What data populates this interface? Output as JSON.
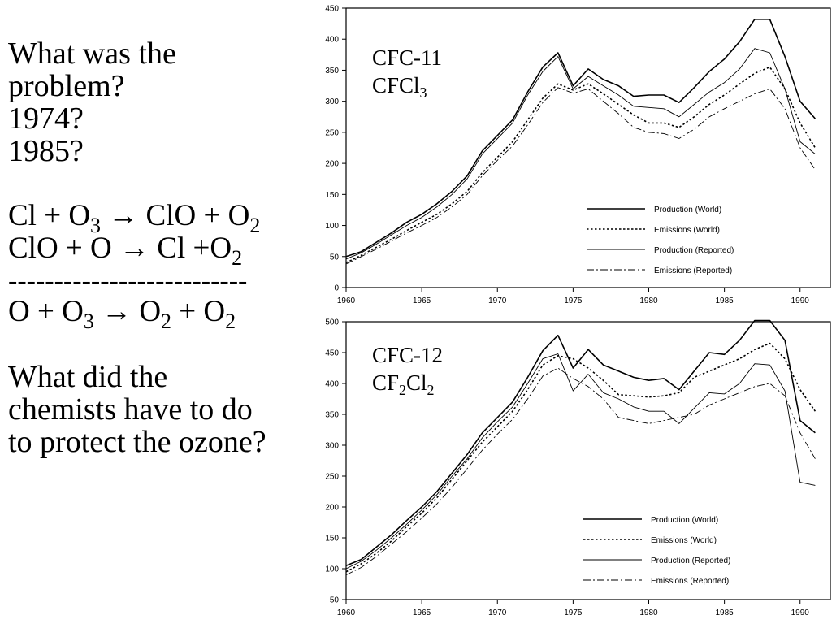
{
  "left_panel": {
    "question1": [
      "What was the",
      "problem?"
    ],
    "year1": "1974?",
    "year2": "1985?",
    "eq1": {
      "a": "Cl + O",
      "a_sub": "3",
      "b": " → ClO + O",
      "b_sub": "2"
    },
    "eq2": {
      "a": "ClO + O → Cl +O",
      "a_sub": "2"
    },
    "divider": "--------------------------",
    "eq3": {
      "a": "O + O",
      "a_sub": "3",
      "b": " → O",
      "b_sub": "2",
      "c": " + O",
      "c_sub": "2"
    },
    "question2": [
      "What did the",
      "chemists have to do",
      "to protect the ozone?"
    ]
  },
  "chart_data": [
    {
      "type": "line",
      "title": "CFC-11",
      "formula": {
        "prefix": "CFCl",
        "sub": "3",
        "suffix": ""
      },
      "xlabel": "",
      "ylabel": "",
      "xlim": [
        1960,
        1992
      ],
      "ylim": [
        0,
        450
      ],
      "x_ticks": [
        1960,
        1965,
        1970,
        1975,
        1980,
        1985,
        1990
      ],
      "y_ticks": [
        0,
        50,
        100,
        150,
        200,
        250,
        300,
        350,
        400,
        450
      ],
      "grid": false,
      "legend_position": "bottom-right",
      "x": [
        1960,
        1961,
        1962,
        1963,
        1964,
        1965,
        1966,
        1967,
        1968,
        1969,
        1970,
        1971,
        1972,
        1973,
        1974,
        1975,
        1976,
        1977,
        1978,
        1979,
        1980,
        1981,
        1982,
        1983,
        1984,
        1985,
        1986,
        1987,
        1988,
        1989,
        1990,
        1991
      ],
      "series": [
        {
          "name": "Production  (World)",
          "style": "solid",
          "width": 1.6,
          "values": [
            50,
            58,
            73,
            88,
            105,
            118,
            135,
            155,
            180,
            220,
            245,
            270,
            315,
            355,
            378,
            325,
            352,
            335,
            325,
            308,
            310,
            310,
            298,
            322,
            348,
            368,
            396,
            432,
            432,
            372,
            300,
            272
          ]
        },
        {
          "name": "Emissions  (World)",
          "style": "dotted",
          "width": 1.6,
          "values": [
            40,
            52,
            65,
            78,
            92,
            105,
            118,
            135,
            155,
            185,
            210,
            235,
            270,
            305,
            328,
            318,
            328,
            312,
            295,
            278,
            265,
            265,
            258,
            275,
            295,
            310,
            328,
            345,
            355,
            320,
            265,
            225
          ]
        },
        {
          "name": "Production  (Reported)",
          "style": "solid",
          "width": 0.9,
          "values": [
            46,
            56,
            70,
            85,
            100,
            113,
            130,
            150,
            175,
            215,
            240,
            265,
            310,
            348,
            372,
            320,
            340,
            325,
            310,
            292,
            290,
            288,
            275,
            295,
            315,
            330,
            352,
            385,
            378,
            320,
            235,
            215
          ]
        },
        {
          "name": "Emissions  (Reported)",
          "style": "dashdot",
          "width": 0.9,
          "values": [
            38,
            50,
            62,
            75,
            88,
            100,
            113,
            130,
            150,
            180,
            205,
            228,
            262,
            298,
            322,
            313,
            320,
            300,
            280,
            258,
            250,
            248,
            240,
            255,
            275,
            288,
            300,
            312,
            320,
            288,
            225,
            190
          ]
        }
      ]
    },
    {
      "type": "line",
      "title": "CFC-12",
      "formula": {
        "prefix": "CF",
        "sub": "2",
        "suffix": "Cl",
        "sub2": "2"
      },
      "xlabel": "",
      "ylabel": "",
      "xlim": [
        1960,
        1992
      ],
      "ylim": [
        50,
        500
      ],
      "x_ticks": [
        1960,
        1965,
        1970,
        1975,
        1980,
        1985,
        1990
      ],
      "y_ticks": [
        50,
        100,
        150,
        200,
        250,
        300,
        350,
        400,
        450,
        500
      ],
      "grid": false,
      "legend_position": "bottom-right",
      "x": [
        1960,
        1961,
        1962,
        1963,
        1964,
        1965,
        1966,
        1967,
        1968,
        1969,
        1970,
        1971,
        1972,
        1973,
        1974,
        1975,
        1976,
        1977,
        1978,
        1979,
        1980,
        1981,
        1982,
        1983,
        1984,
        1985,
        1986,
        1987,
        1988,
        1989,
        1990,
        1991
      ],
      "series": [
        {
          "name": "Production  (World)",
          "style": "solid",
          "width": 1.6,
          "values": [
            105,
            115,
            135,
            155,
            178,
            200,
            225,
            255,
            285,
            320,
            345,
            370,
            410,
            453,
            478,
            425,
            455,
            430,
            420,
            410,
            405,
            408,
            390,
            420,
            450,
            447,
            470,
            502,
            502,
            470,
            340,
            320
          ]
        },
        {
          "name": "Emissions  (World)",
          "style": "dotted",
          "width": 1.6,
          "values": [
            95,
            108,
            125,
            145,
            168,
            190,
            215,
            245,
            275,
            305,
            330,
            355,
            390,
            430,
            445,
            440,
            425,
            405,
            382,
            380,
            378,
            380,
            385,
            410,
            420,
            430,
            440,
            455,
            465,
            440,
            390,
            355
          ]
        },
        {
          "name": "Production  (Reported)",
          "style": "solid",
          "width": 0.9,
          "values": [
            100,
            112,
            130,
            150,
            172,
            195,
            220,
            250,
            278,
            312,
            338,
            362,
            400,
            440,
            448,
            388,
            415,
            385,
            375,
            362,
            355,
            355,
            335,
            360,
            385,
            383,
            400,
            432,
            430,
            388,
            240,
            235
          ]
        },
        {
          "name": "Emissions  (Reported)",
          "style": "dashdot",
          "width": 0.9,
          "values": [
            90,
            102,
            120,
            140,
            160,
            182,
            205,
            232,
            262,
            292,
            318,
            342,
            375,
            412,
            425,
            408,
            395,
            375,
            345,
            340,
            335,
            340,
            345,
            350,
            365,
            375,
            385,
            395,
            400,
            380,
            320,
            278
          ]
        }
      ]
    }
  ]
}
